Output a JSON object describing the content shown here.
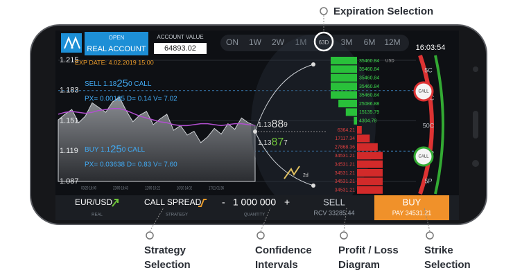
{
  "callouts": {
    "expiration": "Expiration Selection",
    "strategy": [
      "Strategy",
      "Selection"
    ],
    "confidence": [
      "Confidence",
      "Intervals"
    ],
    "pnl": [
      "Profit / Loss",
      "Diagram"
    ],
    "strike": [
      "Strike",
      "Selection"
    ]
  },
  "header": {
    "open": "OPEN",
    "account": "REAL ACCOUNT",
    "account_value_label": "ACCOUNT VALUE",
    "account_value": "64893.02",
    "tabs": [
      "ON",
      "1W",
      "2W",
      "1M",
      "63D",
      "3M",
      "6M",
      "12M"
    ],
    "time": "16:03:54"
  },
  "chart": {
    "exp_date": "EXP DATE: 4.02.2019 15:00",
    "ylim": [
      1.087,
      1.215
    ],
    "yticks": [
      1.087,
      1.119,
      1.151,
      1.183,
      1.215
    ],
    "xticks": [
      "03/29 16:00",
      "23/09 16:43",
      "12/09 10:22",
      "10/10 14:02",
      "17/11 01:36"
    ],
    "price": [
      1.152,
      1.158,
      1.163,
      1.149,
      1.156,
      1.17,
      1.165,
      1.16,
      1.171,
      1.176,
      1.162,
      1.15,
      1.157,
      1.161,
      1.147,
      1.153,
      1.158,
      1.141,
      1.146,
      1.136,
      1.14,
      1.128,
      1.134,
      1.143,
      1.137,
      1.148,
      1.142,
      1.154,
      1.149,
      1.146
    ],
    "average": [
      1.158,
      1.16,
      1.161,
      1.16,
      1.159,
      1.16,
      1.162,
      1.163,
      1.164,
      1.164,
      1.162,
      1.159,
      1.156,
      1.154,
      1.152,
      1.15,
      1.149,
      1.147,
      1.146,
      1.146,
      1.147,
      1.148,
      1.148,
      1.147,
      1.146,
      1.147,
      1.148,
      1.148,
      1.147,
      1.146
    ],
    "sell": [
      "SELL 1.18",
      "25",
      "0 CALL"
    ],
    "sell_greeks": "PX= 0.00185 D= 0.14 V= 7.02",
    "buy": [
      "BUY 1.1",
      "25",
      "0 CALL"
    ],
    "buy_greeks": "PX= 0.03638 D= 0.83 V= 7.60"
  },
  "confidence": {
    "upper": [
      "1.13",
      "88",
      "9"
    ],
    "lower": [
      "1.13",
      "87",
      "7"
    ],
    "days": "2d"
  },
  "pnl": {
    "unit": "USD",
    "profit": [
      35460.84,
      35460.84,
      35460.84,
      35460.84,
      35460.84,
      25086.88,
      15135.79,
      4304.78
    ],
    "loss": [
      6364.21,
      17117.34,
      27868.36,
      34531.21,
      34531.21,
      34531.21,
      34531.21,
      34531.21
    ]
  },
  "strikes": {
    "labels": [
      "5C",
      "30C",
      "50C",
      "30P",
      "5P"
    ],
    "bubble": "CALL"
  },
  "footer": {
    "pair": "EUR/USD",
    "pair_sub": "REAL",
    "strategy": "CALL SPREAD",
    "strategy_sub": "STRATEGY",
    "minus": "-",
    "quantity": "1 000 000",
    "plus": "+",
    "quantity_sub": "QUANTITY",
    "sell": "SELL",
    "sell_sub": "RCV 33285.44",
    "buy": "BUY",
    "buy_sub": "PAY 34531.21"
  }
}
